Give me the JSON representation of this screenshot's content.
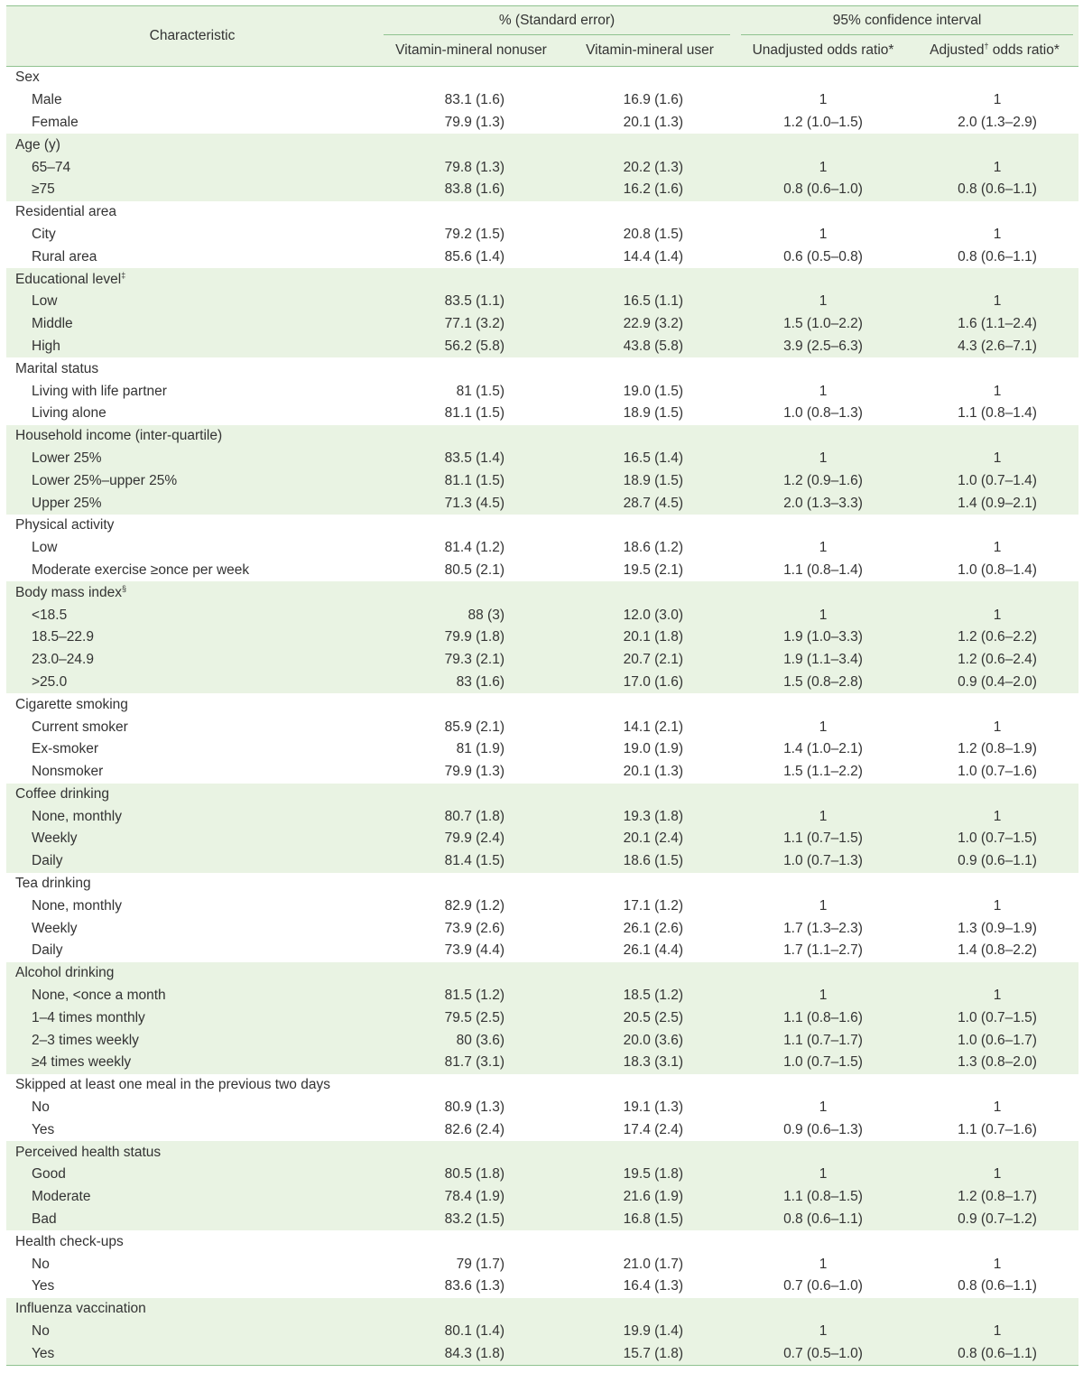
{
  "header": {
    "characteristic": "Characteristic",
    "group_pct": "% (Standard error)",
    "group_ci": "95% confidence interval",
    "col_nonuser": "Vitamin-mineral nonuser",
    "col_user": "Vitamin-mineral user",
    "col_unadj": "Unadjusted odds ratio*",
    "col_adj_pre": "Adjusted",
    "col_adj_sup": "†",
    "col_adj_post": " odds ratio*"
  },
  "groups": [
    {
      "label": "Sex",
      "sup": "",
      "rows": [
        {
          "label": "Male",
          "nonuser": "83.1 (1.6)",
          "user": "16.9 (1.6)",
          "unadj": "1",
          "adj": "1"
        },
        {
          "label": "Female",
          "nonuser": "79.9 (1.3)",
          "user": "20.1 (1.3)",
          "unadj": "1.2 (1.0–1.5)",
          "adj": "2.0 (1.3–2.9)"
        }
      ]
    },
    {
      "label": "Age (y)",
      "sup": "",
      "rows": [
        {
          "label": "65–74",
          "nonuser": "79.8 (1.3)",
          "user": "20.2 (1.3)",
          "unadj": "1",
          "adj": "1"
        },
        {
          "label": "≥75",
          "nonuser": "83.8 (1.6)",
          "user": "16.2 (1.6)",
          "unadj": "0.8 (0.6–1.0)",
          "adj": "0.8 (0.6–1.1)"
        }
      ]
    },
    {
      "label": "Residential area",
      "sup": "",
      "rows": [
        {
          "label": "City",
          "nonuser": "79.2 (1.5)",
          "user": "20.8 (1.5)",
          "unadj": "1",
          "adj": "1"
        },
        {
          "label": "Rural area",
          "nonuser": "85.6 (1.4)",
          "user": "14.4 (1.4)",
          "unadj": "0.6 (0.5–0.8)",
          "adj": "0.8 (0.6–1.1)"
        }
      ]
    },
    {
      "label": "Educational level",
      "sup": "‡",
      "rows": [
        {
          "label": "Low",
          "nonuser": "83.5 (1.1)",
          "user": "16.5 (1.1)",
          "unadj": "1",
          "adj": "1"
        },
        {
          "label": "Middle",
          "nonuser": "77.1 (3.2)",
          "user": "22.9 (3.2)",
          "unadj": "1.5 (1.0–2.2)",
          "adj": "1.6 (1.1–2.4)"
        },
        {
          "label": "High",
          "nonuser": "56.2 (5.8)",
          "user": "43.8 (5.8)",
          "unadj": "3.9 (2.5–6.3)",
          "adj": "4.3 (2.6–7.1)"
        }
      ]
    },
    {
      "label": "Marital status",
      "sup": "",
      "rows": [
        {
          "label": "Living with life partner",
          "nonuser": "81 (1.5)",
          "user": "19.0 (1.5)",
          "unadj": "1",
          "adj": "1"
        },
        {
          "label": "Living alone",
          "nonuser": "81.1 (1.5)",
          "user": "18.9 (1.5)",
          "unadj": "1.0 (0.8–1.3)",
          "adj": "1.1 (0.8–1.4)"
        }
      ]
    },
    {
      "label": "Household income (inter-quartile)",
      "sup": "",
      "rows": [
        {
          "label": "Lower 25%",
          "nonuser": "83.5 (1.4)",
          "user": "16.5 (1.4)",
          "unadj": "1",
          "adj": "1"
        },
        {
          "label": "Lower 25%–upper 25%",
          "nonuser": "81.1 (1.5)",
          "user": "18.9 (1.5)",
          "unadj": "1.2 (0.9–1.6)",
          "adj": "1.0 (0.7–1.4)"
        },
        {
          "label": "Upper 25%",
          "nonuser": "71.3 (4.5)",
          "user": "28.7 (4.5)",
          "unadj": "2.0 (1.3–3.3)",
          "adj": "1.4 (0.9–2.1)"
        }
      ]
    },
    {
      "label": "Physical activity",
      "sup": "",
      "rows": [
        {
          "label": "Low",
          "nonuser": "81.4 (1.2)",
          "user": "18.6 (1.2)",
          "unadj": "1",
          "adj": "1"
        },
        {
          "label": "Moderate exercise ≥once per week",
          "nonuser": "80.5 (2.1)",
          "user": "19.5 (2.1)",
          "unadj": "1.1 (0.8–1.4)",
          "adj": "1.0 (0.8–1.4)"
        }
      ]
    },
    {
      "label": "Body mass index",
      "sup": "§",
      "rows": [
        {
          "label": "<18.5",
          "nonuser": "88 (3)",
          "user": "12.0 (3.0)",
          "unadj": "1",
          "adj": "1"
        },
        {
          "label": "18.5–22.9",
          "nonuser": "79.9 (1.8)",
          "user": "20.1 (1.8)",
          "unadj": "1.9 (1.0–3.3)",
          "adj": "1.2 (0.6–2.2)"
        },
        {
          "label": "23.0–24.9",
          "nonuser": "79.3 (2.1)",
          "user": "20.7 (2.1)",
          "unadj": "1.9 (1.1–3.4)",
          "adj": "1.2 (0.6–2.4)"
        },
        {
          "label": ">25.0",
          "nonuser": "83 (1.6)",
          "user": "17.0 (1.6)",
          "unadj": "1.5 (0.8–2.8)",
          "adj": "0.9 (0.4–2.0)"
        }
      ]
    },
    {
      "label": "Cigarette smoking",
      "sup": "",
      "rows": [
        {
          "label": "Current smoker",
          "nonuser": "85.9 (2.1)",
          "user": "14.1 (2.1)",
          "unadj": "1",
          "adj": "1"
        },
        {
          "label": "Ex-smoker",
          "nonuser": "81 (1.9)",
          "user": "19.0 (1.9)",
          "unadj": "1.4 (1.0–2.1)",
          "adj": "1.2 (0.8–1.9)"
        },
        {
          "label": "Nonsmoker",
          "nonuser": "79.9 (1.3)",
          "user": "20.1 (1.3)",
          "unadj": "1.5 (1.1–2.2)",
          "adj": "1.0 (0.7–1.6)"
        }
      ]
    },
    {
      "label": "Coffee drinking",
      "sup": "",
      "rows": [
        {
          "label": "None, monthly",
          "nonuser": "80.7 (1.8)",
          "user": "19.3 (1.8)",
          "unadj": "1",
          "adj": "1"
        },
        {
          "label": "Weekly",
          "nonuser": "79.9 (2.4)",
          "user": "20.1 (2.4)",
          "unadj": "1.1 (0.7–1.5)",
          "adj": "1.0 (0.7–1.5)"
        },
        {
          "label": "Daily",
          "nonuser": "81.4 (1.5)",
          "user": "18.6 (1.5)",
          "unadj": "1.0 (0.7–1.3)",
          "adj": "0.9 (0.6–1.1)"
        }
      ]
    },
    {
      "label": "Tea drinking",
      "sup": "",
      "rows": [
        {
          "label": "None, monthly",
          "nonuser": "82.9 (1.2)",
          "user": "17.1 (1.2)",
          "unadj": "1",
          "adj": "1"
        },
        {
          "label": "Weekly",
          "nonuser": "73.9 (2.6)",
          "user": "26.1 (2.6)",
          "unadj": "1.7 (1.3–2.3)",
          "adj": "1.3 (0.9–1.9)"
        },
        {
          "label": "Daily",
          "nonuser": "73.9 (4.4)",
          "user": "26.1 (4.4)",
          "unadj": "1.7 (1.1–2.7)",
          "adj": "1.4 (0.8–2.2)"
        }
      ]
    },
    {
      "label": "Alcohol drinking",
      "sup": "",
      "rows": [
        {
          "label": "None, <once a month",
          "nonuser": "81.5 (1.2)",
          "user": "18.5 (1.2)",
          "unadj": "1",
          "adj": "1"
        },
        {
          "label": "1–4 times monthly",
          "nonuser": "79.5 (2.5)",
          "user": "20.5 (2.5)",
          "unadj": "1.1 (0.8–1.6)",
          "adj": "1.0 (0.7–1.5)"
        },
        {
          "label": "2–3 times weekly",
          "nonuser": "80 (3.6)",
          "user": "20.0 (3.6)",
          "unadj": "1.1 (0.7–1.7)",
          "adj": "1.0 (0.6–1.7)"
        },
        {
          "label": "≥4 times weekly",
          "nonuser": "81.7 (3.1)",
          "user": "18.3 (3.1)",
          "unadj": "1.0 (0.7–1.5)",
          "adj": "1.3 (0.8–2.0)"
        }
      ]
    },
    {
      "label": "Skipped at least one meal in the previous two days",
      "sup": "",
      "rows": [
        {
          "label": "No",
          "nonuser": "80.9 (1.3)",
          "user": "19.1 (1.3)",
          "unadj": "1",
          "adj": "1"
        },
        {
          "label": "Yes",
          "nonuser": "82.6 (2.4)",
          "user": "17.4 (2.4)",
          "unadj": "0.9 (0.6–1.3)",
          "adj": "1.1 (0.7–1.6)"
        }
      ]
    },
    {
      "label": "Perceived health status",
      "sup": "",
      "rows": [
        {
          "label": "Good",
          "nonuser": "80.5 (1.8)",
          "user": "19.5 (1.8)",
          "unadj": "1",
          "adj": "1"
        },
        {
          "label": "Moderate",
          "nonuser": "78.4 (1.9)",
          "user": "21.6 (1.9)",
          "unadj": "1.1 (0.8–1.5)",
          "adj": "1.2 (0.8–1.7)"
        },
        {
          "label": "Bad",
          "nonuser": "83.2 (1.5)",
          "user": "16.8 (1.5)",
          "unadj": "0.8 (0.6–1.1)",
          "adj": "0.9 (0.7–1.2)"
        }
      ]
    },
    {
      "label": "Health check-ups",
      "sup": "",
      "rows": [
        {
          "label": "No",
          "nonuser": "79 (1.7)",
          "user": "21.0 (1.7)",
          "unadj": "1",
          "adj": "1"
        },
        {
          "label": "Yes",
          "nonuser": "83.6 (1.3)",
          "user": "16.4 (1.3)",
          "unadj": "0.7 (0.6–1.0)",
          "adj": "0.8 (0.6–1.1)"
        }
      ]
    },
    {
      "label": "Influenza vaccination",
      "sup": "",
      "rows": [
        {
          "label": "No",
          "nonuser": "80.1 (1.4)",
          "user": "19.9 (1.4)",
          "unadj": "1",
          "adj": "1"
        },
        {
          "label": "Yes",
          "nonuser": "84.3 (1.8)",
          "user": "15.7 (1.8)",
          "unadj": "0.7 (0.5–1.0)",
          "adj": "0.8 (0.6–1.1)"
        }
      ]
    }
  ]
}
